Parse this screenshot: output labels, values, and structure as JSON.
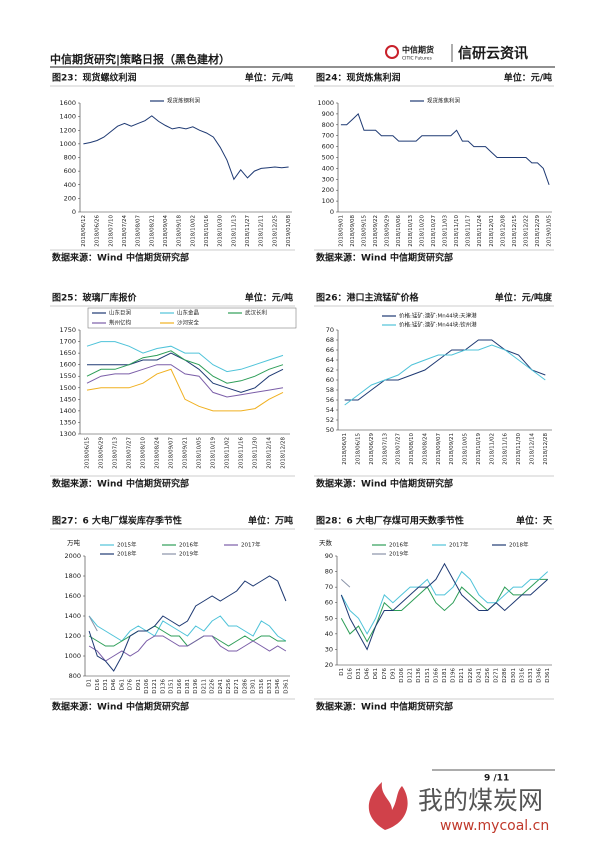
{
  "header": {
    "title": "中信期货研究|策略日报（黑色建材）",
    "logo_cn": "中信期货",
    "logo_en": "CITIC Futures",
    "brand": "信研云资讯"
  },
  "chart_data": [
    {
      "type": "line",
      "title": "图23：现货螺纹利润",
      "unit": "单位：元/吨",
      "source": "数据来源：Wind 中信期货研究部",
      "categories": [
        "2018/06/12",
        null,
        "2018/06/26",
        null,
        "2018/07/10",
        null,
        "2018/07/24",
        null,
        "2018/08/07",
        null,
        "2018/08/21",
        null,
        "2018/09/04",
        null,
        "2018/09/18",
        null,
        "2018/10/02",
        null,
        "2018/10/16",
        null,
        "2018/10/30",
        null,
        "2018/11/13",
        null,
        "2018/11/27",
        null,
        "2018/12/11",
        null,
        "2018/12/25",
        null,
        "2019/01/08"
      ],
      "series": [
        {
          "name": "现货炼钢利润",
          "color": "#1f3a73",
          "values": [
            1000,
            1020,
            1050,
            1100,
            1180,
            1260,
            1300,
            1260,
            1300,
            1340,
            1410,
            1330,
            1270,
            1220,
            1240,
            1220,
            1250,
            1200,
            1160,
            1100,
            950,
            760,
            480,
            620,
            500,
            600,
            640,
            650,
            660,
            650,
            660
          ]
        }
      ],
      "ylim": [
        0,
        1600
      ],
      "yticks": [
        0,
        200,
        400,
        600,
        800,
        1000,
        1200,
        1400,
        1600
      ]
    },
    {
      "type": "line",
      "title": "图24：现货炼焦利润",
      "unit": "单位：元/吨",
      "source": "数据来源：Wind 中信期货研究部",
      "categories": [
        "2018/09/01",
        null,
        "2018/09/08",
        null,
        "2018/09/15",
        null,
        "2018/09/22",
        null,
        "2018/09/29",
        null,
        "2018/10/06",
        null,
        "2018/10/13",
        null,
        "2018/10/20",
        null,
        "2018/10/27",
        null,
        "2018/11/03",
        null,
        "2018/11/10",
        null,
        "2018/11/17",
        null,
        "2018/11/24",
        null,
        "2018/12/01",
        null,
        "2018/12/08",
        null,
        "2018/12/15",
        null,
        "2018/12/22",
        null,
        "2018/12/29",
        null,
        "2019/01/05"
      ],
      "series": [
        {
          "name": "现货炼焦利润",
          "color": "#1f3a73",
          "values": [
            800,
            800,
            850,
            900,
            750,
            750,
            750,
            700,
            700,
            700,
            650,
            650,
            650,
            650,
            700,
            700,
            700,
            700,
            700,
            700,
            750,
            650,
            650,
            600,
            600,
            600,
            550,
            500,
            500,
            500,
            500,
            500,
            500,
            450,
            450,
            400,
            250
          ]
        }
      ],
      "ylim": [
        0,
        1000
      ],
      "yticks": [
        0,
        100,
        200,
        300,
        400,
        500,
        600,
        700,
        800,
        900,
        1000
      ]
    },
    {
      "type": "line",
      "title": "图25：玻璃厂库报价",
      "unit": "单位：元/吨",
      "source": "数据来源：Wind 中信期货研究部",
      "categories": [
        "2018/06/15",
        "2018/06/29",
        "2018/07/13",
        "2018/07/27",
        "2018/08/10",
        "2018/08/24",
        "2018/09/07",
        "2018/09/21",
        "2018/10/05",
        "2018/10/19",
        "2018/11/02",
        "2018/11/16",
        "2018/11/30",
        "2018/12/14",
        "2018/12/28"
      ],
      "series": [
        {
          "name": "山东巨润",
          "color": "#1f3a73",
          "values": [
            1600,
            1600,
            1600,
            1600,
            1620,
            1620,
            1650,
            1620,
            1580,
            1520,
            1500,
            1480,
            1500,
            1550,
            1580
          ]
        },
        {
          "name": "山东金晶",
          "color": "#4fc3d9",
          "values": [
            1680,
            1700,
            1700,
            1680,
            1650,
            1670,
            1680,
            1650,
            1650,
            1600,
            1570,
            1580,
            1600,
            1620,
            1640
          ]
        },
        {
          "name": "武汉长利",
          "color": "#2e9e58",
          "values": [
            1550,
            1580,
            1580,
            1600,
            1630,
            1640,
            1660,
            1620,
            1600,
            1550,
            1520,
            1530,
            1550,
            1580,
            1600
          ]
        },
        {
          "name": "荆州亿钧",
          "color": "#7b5ea8",
          "values": [
            1520,
            1550,
            1560,
            1560,
            1580,
            1600,
            1600,
            1560,
            1550,
            1480,
            1460,
            1470,
            1480,
            1490,
            1500
          ]
        },
        {
          "name": "沙河安全",
          "color": "#f0b020",
          "values": [
            1490,
            1500,
            1500,
            1500,
            1520,
            1560,
            1580,
            1450,
            1420,
            1400,
            1400,
            1400,
            1410,
            1450,
            1480
          ]
        }
      ],
      "ylim": [
        1300,
        1750
      ],
      "yticks": [
        1300,
        1350,
        1400,
        1450,
        1500,
        1550,
        1600,
        1650,
        1700,
        1750
      ]
    },
    {
      "type": "line",
      "title": "图26：港口主流锰矿价格",
      "unit": "单位：元/吨度",
      "source": "数据来源：Wind 中信期货研究部",
      "categories": [
        "2018/06/01",
        "2018/06/15",
        "2018/06/29",
        "2018/07/13",
        "2018/07/27",
        "2018/08/10",
        "2018/08/24",
        "2018/09/07",
        "2018/09/21",
        "2018/10/05",
        "2018/10/19",
        "2018/11/02",
        "2018/11/16",
        "2018/11/30",
        "2018/12/14",
        "2018/12/28"
      ],
      "series": [
        {
          "name": "价格:锰矿:澳矿:Mn44块:天津港",
          "color": "#1f3a73",
          "values": [
            56,
            56,
            58,
            60,
            60,
            61,
            62,
            64,
            66,
            66,
            68,
            68,
            66,
            65,
            62,
            61
          ]
        },
        {
          "name": "价格:锰矿:澳矿:Mn44块:钦州港",
          "color": "#4fc3d9",
          "values": [
            55,
            57,
            59,
            60,
            61,
            63,
            64,
            65,
            65,
            66,
            66,
            67,
            66,
            64,
            62,
            60
          ]
        }
      ],
      "ylim": [
        50,
        70
      ],
      "yticks": [
        50,
        52,
        54,
        56,
        58,
        60,
        62,
        64,
        66,
        68,
        70
      ]
    },
    {
      "type": "line",
      "title": "图27：6 大电厂煤炭库存季节性",
      "unit": "单位：万吨",
      "source": "数据来源：Wind 中信期货研究部",
      "y_label": "万吨",
      "categories": [
        "D1",
        "D16",
        "D31",
        "D46",
        "D61",
        "D76",
        "D91",
        "D106",
        "D121",
        "D136",
        "D151",
        "D166",
        "D181",
        "D196",
        "D211",
        "D226",
        "D241",
        "D256",
        "D271",
        "D286",
        "D301",
        "D316",
        "D331",
        "D346",
        "D361"
      ],
      "series": [
        {
          "name": "2015年",
          "color": "#4fc3d9",
          "values": [
            1400,
            1300,
            1250,
            1200,
            1150,
            1250,
            1300,
            1250,
            1200,
            1350,
            1300,
            1250,
            1200,
            1300,
            1250,
            1350,
            1400,
            1300,
            1300,
            1250,
            1200,
            1350,
            1300,
            1200,
            1150
          ]
        },
        {
          "name": "2016年",
          "color": "#2e9e58",
          "values": [
            1200,
            1150,
            1100,
            1100,
            1150,
            1200,
            1250,
            1250,
            1300,
            1250,
            1200,
            1200,
            1100,
            1150,
            1200,
            1200,
            1150,
            1100,
            1150,
            1200,
            1150,
            1200,
            1200,
            1150,
            1150
          ]
        },
        {
          "name": "2017年",
          "color": "#7b5ea8",
          "values": [
            1100,
            1050,
            950,
            1000,
            1050,
            1000,
            1050,
            1150,
            1200,
            1200,
            1150,
            1100,
            1100,
            1150,
            1200,
            1200,
            1100,
            1050,
            1050,
            1100,
            1150,
            1100,
            1050,
            1100,
            1050
          ]
        },
        {
          "name": "2018年",
          "color": "#1f3a73",
          "values": [
            1250,
            1000,
            950,
            850,
            1000,
            1200,
            1250,
            1250,
            1300,
            1400,
            1350,
            1300,
            1350,
            1500,
            1550,
            1600,
            1550,
            1600,
            1650,
            1750,
            1700,
            1750,
            1800,
            1750,
            1550
          ]
        },
        {
          "name": "2019年",
          "color": "#8a93a8",
          "values": [
            1400,
            1250,
            null,
            null,
            null,
            null,
            null,
            null,
            null,
            null,
            null,
            null,
            null,
            null,
            null,
            null,
            null,
            null,
            null,
            null,
            null,
            null,
            null,
            null,
            null
          ]
        }
      ],
      "ylim": [
        800,
        2000
      ],
      "yticks": [
        800,
        1000,
        1200,
        1400,
        1600,
        1800,
        2000
      ]
    },
    {
      "type": "line",
      "title": "图28：6 大电厂存煤可用天数季节性",
      "unit": "单位：天",
      "source": "数据来源：Wind 中信期货研究部",
      "y_label": "天数",
      "categories": [
        "D1",
        "D16",
        "D31",
        "D46",
        "D61",
        "D76",
        "D91",
        "D106",
        "D121",
        "D136",
        "D151",
        "D166",
        "D181",
        "D196",
        "D211",
        "D226",
        "D241",
        "D256",
        "D271",
        "D286",
        "D301",
        "D316",
        "D331",
        "D346",
        "D361"
      ],
      "series": [
        {
          "name": "2016年",
          "color": "#2e9e58",
          "values": [
            50,
            40,
            45,
            35,
            45,
            60,
            55,
            55,
            60,
            65,
            70,
            60,
            55,
            60,
            70,
            65,
            60,
            55,
            60,
            70,
            65,
            65,
            70,
            75,
            75
          ]
        },
        {
          "name": "2017年",
          "color": "#4fc3d9",
          "values": [
            65,
            55,
            50,
            40,
            50,
            65,
            60,
            65,
            70,
            70,
            75,
            65,
            65,
            70,
            80,
            75,
            65,
            60,
            60,
            65,
            70,
            70,
            75,
            75,
            80
          ]
        },
        {
          "name": "2018年",
          "color": "#1f3a73",
          "values": [
            65,
            50,
            40,
            30,
            45,
            55,
            55,
            60,
            65,
            70,
            70,
            75,
            85,
            75,
            65,
            60,
            55,
            55,
            60,
            55,
            60,
            65,
            65,
            70,
            75
          ]
        },
        {
          "name": "2019年",
          "color": "#8a93a8",
          "values": [
            75,
            70,
            null,
            null,
            null,
            null,
            null,
            null,
            null,
            null,
            null,
            null,
            null,
            null,
            null,
            null,
            null,
            null,
            null,
            null,
            null,
            null,
            null,
            null,
            null
          ]
        }
      ],
      "ylim": [
        20,
        90
      ],
      "yticks": [
        20,
        30,
        40,
        50,
        60,
        70,
        80,
        90
      ]
    }
  ],
  "footer": {
    "page": "9 /11",
    "watermark": "我的煤炭网",
    "url": "www.mycoal.cn"
  }
}
